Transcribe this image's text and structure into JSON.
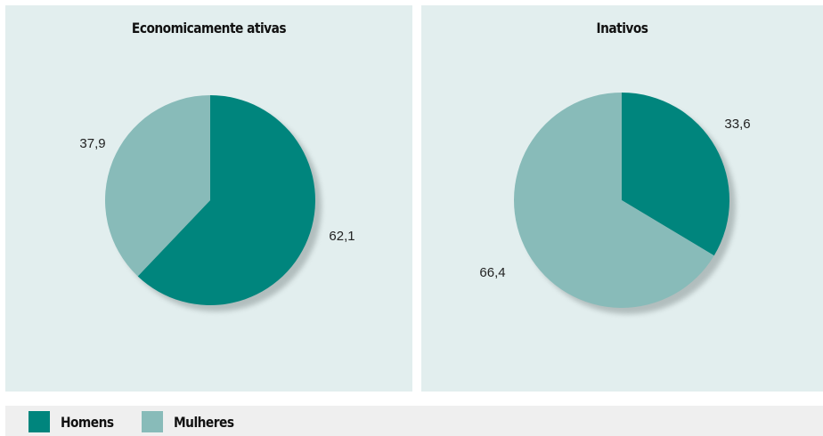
{
  "chart_data": [
    {
      "type": "pie",
      "title": "Economicamente ativas",
      "slices": [
        {
          "name": "Homens",
          "value": 62.1,
          "label": "62,1"
        },
        {
          "name": "Mulheres",
          "value": 37.9,
          "label": "37,9"
        }
      ]
    },
    {
      "type": "pie",
      "title": "Inativos",
      "slices": [
        {
          "name": "Homens",
          "value": 33.6,
          "label": "33,6"
        },
        {
          "name": "Mulheres",
          "value": 66.4,
          "label": "66,4"
        }
      ]
    }
  ],
  "legend": [
    {
      "name": "Homens",
      "color": "#00857d"
    },
    {
      "name": "Mulheres",
      "color": "#88bbb9"
    }
  ],
  "colors": {
    "homens": "#00857d",
    "mulheres": "#88bbb9",
    "panel_background": "#e2eeee",
    "legend_background": "#efefef"
  }
}
